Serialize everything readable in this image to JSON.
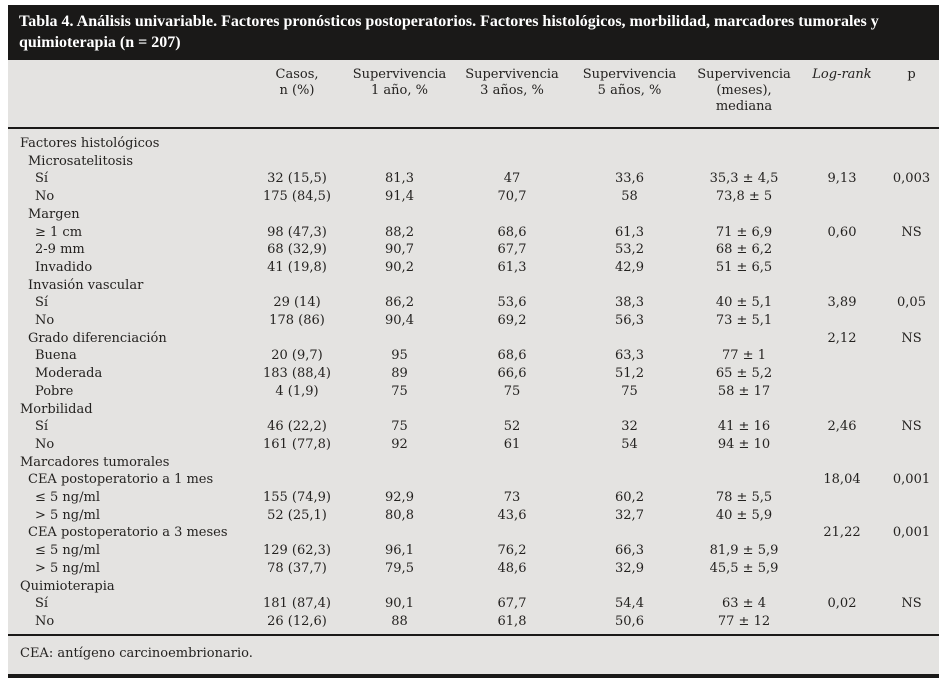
{
  "title": "Tabla 4. Análisis univariable. Factores pronósticos postoperatorios. Factores histológicos, morbilidad, marcadores tumorales y quimioterapia (n = 207)",
  "header": {
    "label": "",
    "casos": "Casos,\nn (%)",
    "surv1": "Supervivencia\n1 año, %",
    "surv3": "Supervivencia\n3 años, %",
    "surv5": "Supervivencia\n5 años, %",
    "median": "Supervivencia\n(meses),\nmediana",
    "logrank": "Log-rank",
    "p": "p"
  },
  "rows": [
    {
      "label": "Factores histológicos",
      "indent": 0,
      "cells": [
        "",
        "",
        "",
        "",
        "",
        "",
        ""
      ]
    },
    {
      "label": "Microsatelitosis",
      "indent": 1,
      "cells": [
        "",
        "",
        "",
        "",
        "",
        "",
        ""
      ]
    },
    {
      "label": "Sí",
      "indent": 2,
      "cells": [
        "32 (15,5)",
        "81,3",
        "47",
        "33,6",
        "35,3 ± 4,5",
        "9,13",
        "0,003"
      ]
    },
    {
      "label": "No",
      "indent": 2,
      "cells": [
        "175 (84,5)",
        "91,4",
        "70,7",
        "58",
        "73,8 ± 5",
        "",
        ""
      ]
    },
    {
      "label": "Margen",
      "indent": 1,
      "cells": [
        "",
        "",
        "",
        "",
        "",
        "",
        ""
      ]
    },
    {
      "label": "≥ 1 cm",
      "indent": 2,
      "cells": [
        "98 (47,3)",
        "88,2",
        "68,6",
        "61,3",
        "71 ± 6,9",
        "0,60",
        "NS"
      ]
    },
    {
      "label": "2-9 mm",
      "indent": 2,
      "cells": [
        "68 (32,9)",
        "90,7",
        "67,7",
        "53,2",
        "68 ± 6,2",
        "",
        ""
      ]
    },
    {
      "label": "Invadido",
      "indent": 2,
      "cells": [
        "41 (19,8)",
        "90,2",
        "61,3",
        "42,9",
        "51 ± 6,5",
        "",
        ""
      ]
    },
    {
      "label": "Invasión vascular",
      "indent": 1,
      "cells": [
        "",
        "",
        "",
        "",
        "",
        "",
        ""
      ]
    },
    {
      "label": "Sí",
      "indent": 2,
      "cells": [
        "29 (14)",
        "86,2",
        "53,6",
        "38,3",
        "40 ± 5,1",
        "3,89",
        "0,05"
      ]
    },
    {
      "label": "No",
      "indent": 2,
      "cells": [
        "178 (86)",
        "90,4",
        "69,2",
        "56,3",
        "73 ± 5,1",
        "",
        ""
      ]
    },
    {
      "label": "Grado diferenciación",
      "indent": 1,
      "cells": [
        "",
        "",
        "",
        "",
        "",
        "2,12",
        "NS"
      ]
    },
    {
      "label": "Buena",
      "indent": 2,
      "cells": [
        "20 (9,7)",
        "95",
        "68,6",
        "63,3",
        "77 ± 1",
        "",
        ""
      ]
    },
    {
      "label": "Moderada",
      "indent": 2,
      "cells": [
        "183 (88,4)",
        "89",
        "66,6",
        "51,2",
        "65 ± 5,2",
        "",
        ""
      ]
    },
    {
      "label": "Pobre",
      "indent": 2,
      "cells": [
        "4 (1,9)",
        "75",
        "75",
        "75",
        "58 ± 17",
        "",
        ""
      ]
    },
    {
      "label": "Morbilidad",
      "indent": 0,
      "cells": [
        "",
        "",
        "",
        "",
        "",
        "",
        ""
      ]
    },
    {
      "label": "Sí",
      "indent": 2,
      "cells": [
        "46 (22,2)",
        "75",
        "52",
        "32",
        "41 ± 16",
        "2,46",
        "NS"
      ]
    },
    {
      "label": "No",
      "indent": 2,
      "cells": [
        "161 (77,8)",
        "92",
        "61",
        "54",
        "94 ± 10",
        "",
        ""
      ]
    },
    {
      "label": "Marcadores tumorales",
      "indent": 0,
      "cells": [
        "",
        "",
        "",
        "",
        "",
        "",
        ""
      ]
    },
    {
      "label": "CEA postoperatorio a 1 mes",
      "indent": 1,
      "cells": [
        "",
        "",
        "",
        "",
        "",
        "18,04",
        "0,001"
      ]
    },
    {
      "label": "≤ 5 ng/ml",
      "indent": 2,
      "cells": [
        "155 (74,9)",
        "92,9",
        "73",
        "60,2",
        "78 ± 5,5",
        "",
        ""
      ]
    },
    {
      "label": "> 5 ng/ml",
      "indent": 2,
      "cells": [
        "52 (25,1)",
        "80,8",
        "43,6",
        "32,7",
        "40 ± 5,9",
        "",
        ""
      ]
    },
    {
      "label": "CEA postoperatorio a 3 meses",
      "indent": 1,
      "cells": [
        "",
        "",
        "",
        "",
        "",
        "21,22",
        "0,001"
      ]
    },
    {
      "label": "≤ 5 ng/ml",
      "indent": 2,
      "cells": [
        "129 (62,3)",
        "96,1",
        "76,2",
        "66,3",
        "81,9 ± 5,9",
        "",
        ""
      ]
    },
    {
      "label": "> 5 ng/ml",
      "indent": 2,
      "cells": [
        "78 (37,7)",
        "79,5",
        "48,6",
        "32,9",
        "45,5 ± 5,9",
        "",
        ""
      ]
    },
    {
      "label": "Quimioterapia",
      "indent": 0,
      "cells": [
        "",
        "",
        "",
        "",
        "",
        "",
        ""
      ]
    },
    {
      "label": "Sí",
      "indent": 2,
      "cells": [
        "181 (87,4)",
        "90,1",
        "67,7",
        "54,4",
        "63 ± 4",
        "0,02",
        "NS"
      ]
    },
    {
      "label": "No",
      "indent": 2,
      "cells": [
        "26 (12,6)",
        "88",
        "61,8",
        "50,6",
        "77 ± 12",
        "",
        ""
      ]
    }
  ],
  "footnote": "CEA: antígeno carcinoembrionario.",
  "colors": {
    "title_bar": "#1a1918",
    "panel_background": "#e4e3e1",
    "text": "#242220",
    "rule": "#1a1918"
  }
}
